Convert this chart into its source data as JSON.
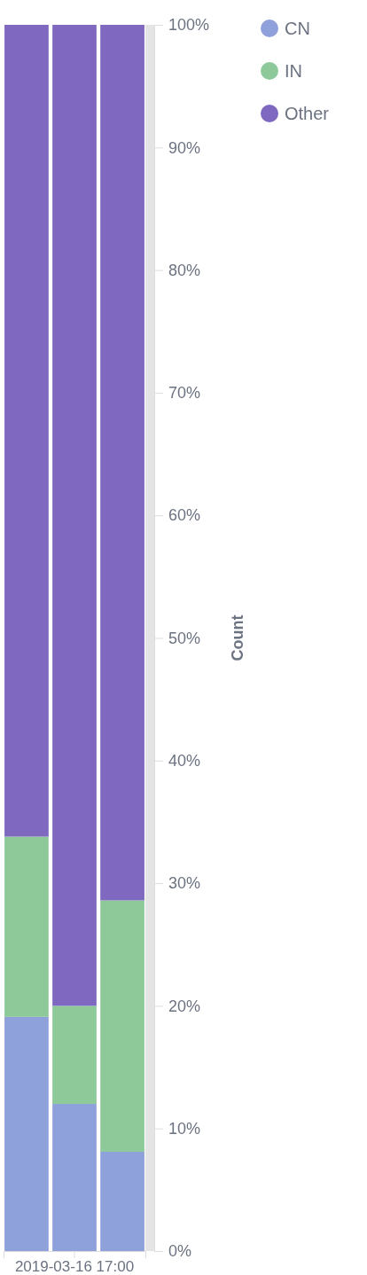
{
  "chart_data": {
    "type": "bar",
    "stacked": true,
    "categories": [
      null,
      "2019-03-16 17:00",
      null
    ],
    "series": [
      {
        "name": "CN",
        "color": "#8fa1da",
        "values": [
          19.1,
          12.0,
          8.1
        ]
      },
      {
        "name": "IN",
        "color": "#8ec99a",
        "values": [
          14.7,
          8.0,
          20.5
        ]
      },
      {
        "name": "Other",
        "color": "#7f68c0",
        "values": [
          66.2,
          80.0,
          71.4
        ]
      }
    ],
    "ylabel": "Count",
    "ylim": [
      0,
      100
    ],
    "yticks": [
      {
        "value": 0,
        "label": "0%"
      },
      {
        "value": 10,
        "label": "10%"
      },
      {
        "value": 20,
        "label": "20%"
      },
      {
        "value": 30,
        "label": "30%"
      },
      {
        "value": 40,
        "label": "40%"
      },
      {
        "value": 50,
        "label": "50%"
      },
      {
        "value": 60,
        "label": "60%"
      },
      {
        "value": 70,
        "label": "70%"
      },
      {
        "value": 80,
        "label": "80%"
      },
      {
        "value": 90,
        "label": "90%"
      },
      {
        "value": 100,
        "label": "100%"
      }
    ],
    "grid": false,
    "legend": "top right"
  }
}
